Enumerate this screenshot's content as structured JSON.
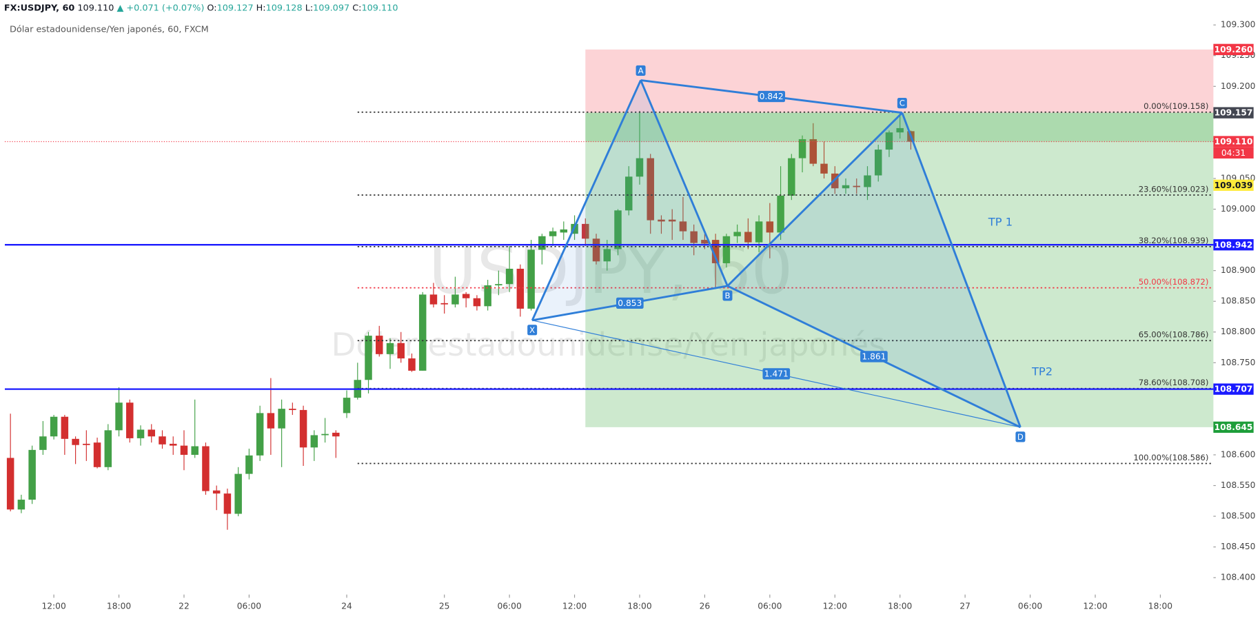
{
  "chart_data": {
    "type": "candlestick",
    "header": {
      "symbol": "FX:USDJPY, 60",
      "last": "109.110",
      "arrow": "▲",
      "change": "+0.071 (+0.07%)",
      "ohlc": [
        [
          "O:",
          "109.127"
        ],
        [
          "H:",
          "109.128"
        ],
        [
          "L:",
          "109.097"
        ],
        [
          "C:",
          "109.110"
        ]
      ]
    },
    "subtitle": "Dólar estadounidense/Yen japonés, 60, FXCM",
    "watermark": {
      "symbol": "USDJPY, 60",
      "description": "Dólar estadounidense/Yen japonés"
    },
    "xlim": [
      -4.963,
      106.89
    ],
    "ylim": [
      108.3725,
      109.3406
    ],
    "xticks": [
      {
        "value": 0,
        "label": "12:00"
      },
      {
        "value": 6,
        "label": "18:00"
      },
      {
        "value": 12,
        "label": "22"
      },
      {
        "value": 18,
        "label": "06:00"
      },
      {
        "value": 27,
        "label": "24"
      },
      {
        "value": 36,
        "label": "25"
      },
      {
        "value": 42,
        "label": "06:00"
      },
      {
        "value": 48,
        "label": "12:00"
      },
      {
        "value": 54,
        "label": "18:00"
      },
      {
        "value": 60,
        "label": "26"
      },
      {
        "value": 66,
        "label": "06:00"
      },
      {
        "value": 72,
        "label": "12:00"
      },
      {
        "value": 78,
        "label": "18:00"
      },
      {
        "value": 84,
        "label": "27"
      },
      {
        "value": 90,
        "label": "06:00"
      },
      {
        "value": 96,
        "label": "12:00"
      },
      {
        "value": 102,
        "label": "18:00"
      }
    ],
    "yticks": [
      {
        "value": 109.3,
        "label": "109.300"
      },
      {
        "value": 109.25,
        "label": "109.250"
      },
      {
        "value": 109.2,
        "label": "109.200"
      },
      {
        "value": 109.05,
        "label": "109.050"
      },
      {
        "value": 109.0,
        "label": "109.000"
      },
      {
        "value": 108.9,
        "label": "108.900"
      },
      {
        "value": 108.85,
        "label": "108.850"
      },
      {
        "value": 108.8,
        "label": "108.800"
      },
      {
        "value": 108.75,
        "label": "108.750"
      },
      {
        "value": 108.6,
        "label": "108.600"
      },
      {
        "value": 108.55,
        "label": "108.550"
      },
      {
        "value": 108.5,
        "label": "108.500"
      },
      {
        "value": 108.45,
        "label": "108.450"
      },
      {
        "value": 108.4,
        "label": "108.400"
      }
    ],
    "up_color": "#43a047",
    "down_color": "#d32f2f",
    "candles": {
      "x": [
        -4,
        -3,
        -2,
        -1,
        0,
        1,
        2,
        3,
        4,
        5,
        6,
        7,
        8,
        9,
        10,
        11,
        12,
        13,
        14,
        15,
        16,
        17,
        18,
        19,
        20,
        21,
        22,
        23,
        24,
        25,
        26,
        27,
        28,
        29,
        30,
        31,
        32,
        33,
        34,
        35,
        36,
        37,
        38,
        39,
        40,
        41,
        42,
        43,
        44,
        45,
        46,
        47,
        48,
        49,
        50,
        51,
        52,
        53,
        54,
        55,
        56,
        57,
        58,
        59,
        60,
        61,
        62,
        63,
        64,
        65,
        66,
        67,
        68,
        69,
        70,
        71,
        72,
        73,
        74,
        75,
        76,
        77,
        78,
        79
      ],
      "open": [
        108.595,
        108.511,
        108.527,
        108.608,
        108.63,
        108.662,
        108.626,
        108.618,
        108.62,
        108.58,
        108.64,
        108.685,
        108.627,
        108.641,
        108.63,
        108.618,
        108.615,
        108.6,
        108.614,
        108.542,
        108.537,
        108.504,
        108.569,
        108.599,
        108.668,
        108.643,
        108.675,
        108.673,
        108.612,
        108.632,
        108.636,
        108.668,
        108.693,
        108.722,
        108.794,
        108.764,
        108.782,
        108.757,
        108.737,
        108.861,
        108.847,
        108.845,
        108.862,
        108.855,
        108.842,
        108.876,
        108.878,
        108.903,
        108.838,
        108.934,
        108.956,
        108.962,
        108.96,
        108.976,
        108.952,
        108.915,
        108.935,
        108.998,
        109.053,
        109.083,
        108.983,
        108.983,
        108.98,
        108.964,
        108.95,
        108.95,
        108.912,
        108.956,
        108.963,
        108.946,
        108.98,
        108.962,
        109.022,
        109.083,
        109.114,
        109.074,
        109.058,
        109.034,
        109.038,
        109.036,
        109.055,
        109.097,
        109.125,
        109.127
      ],
      "high": [
        108.667,
        108.535,
        108.615,
        108.655,
        108.665,
        108.665,
        108.63,
        108.64,
        108.628,
        108.65,
        108.71,
        108.69,
        108.648,
        108.65,
        108.64,
        108.63,
        108.64,
        108.69,
        108.62,
        108.55,
        108.545,
        108.58,
        108.61,
        108.68,
        108.725,
        108.69,
        108.685,
        108.68,
        108.64,
        108.66,
        108.64,
        108.705,
        108.75,
        108.8,
        108.81,
        108.79,
        108.8,
        108.765,
        108.865,
        108.88,
        108.86,
        108.89,
        108.865,
        108.86,
        108.885,
        108.9,
        108.94,
        108.91,
        108.95,
        108.96,
        108.97,
        108.98,
        108.99,
        108.985,
        108.96,
        108.95,
        109.0,
        109.07,
        109.16,
        109.09,
        108.99,
        109.0,
        109.02,
        108.975,
        108.96,
        108.96,
        108.96,
        108.975,
        108.985,
        108.99,
        109.01,
        109.07,
        109.09,
        109.12,
        109.14,
        109.11,
        109.07,
        109.05,
        109.05,
        109.07,
        109.105,
        109.128,
        109.157,
        109.128
      ],
      "low": [
        108.508,
        108.505,
        108.52,
        108.6,
        108.625,
        108.6,
        108.585,
        108.59,
        108.578,
        108.575,
        108.63,
        108.62,
        108.615,
        108.62,
        108.61,
        108.6,
        108.575,
        108.595,
        108.535,
        108.51,
        108.478,
        108.5,
        108.56,
        108.59,
        108.6,
        108.58,
        108.665,
        108.582,
        108.59,
        108.62,
        108.595,
        108.66,
        108.69,
        108.7,
        108.76,
        108.74,
        108.75,
        108.735,
        108.737,
        108.84,
        108.83,
        108.84,
        108.84,
        108.835,
        108.835,
        108.86,
        108.865,
        108.825,
        108.835,
        108.91,
        108.94,
        108.95,
        108.95,
        108.94,
        108.91,
        108.9,
        108.925,
        108.99,
        109.04,
        108.96,
        108.96,
        108.95,
        108.95,
        108.925,
        108.935,
        108.87,
        108.905,
        108.945,
        108.935,
        108.93,
        108.92,
        108.95,
        109.015,
        109.06,
        109.07,
        109.05,
        109.025,
        109.025,
        109.025,
        109.015,
        109.045,
        109.085,
        109.115,
        109.097
      ],
      "close": [
        108.511,
        108.527,
        108.608,
        108.63,
        108.662,
        108.626,
        108.616,
        108.616,
        108.58,
        108.64,
        108.685,
        108.627,
        108.641,
        108.63,
        108.617,
        108.615,
        108.6,
        108.614,
        108.541,
        108.537,
        108.504,
        108.569,
        108.599,
        108.668,
        108.643,
        108.675,
        108.673,
        108.612,
        108.632,
        108.634,
        108.63,
        108.693,
        108.722,
        108.794,
        108.764,
        108.782,
        108.757,
        108.737,
        108.861,
        108.845,
        108.845,
        108.861,
        108.855,
        108.842,
        108.876,
        108.878,
        108.903,
        108.838,
        108.934,
        108.956,
        108.964,
        108.967,
        108.976,
        108.952,
        108.915,
        108.935,
        108.998,
        109.053,
        109.083,
        108.982,
        108.98,
        108.98,
        108.964,
        108.945,
        108.944,
        108.912,
        108.956,
        108.963,
        108.946,
        108.98,
        108.962,
        109.022,
        109.083,
        109.114,
        109.074,
        109.058,
        109.034,
        109.039,
        109.036,
        109.055,
        109.097,
        109.125,
        109.132,
        109.11
      ]
    },
    "position": {
      "start": 49,
      "entry": {
        "value": 109.157,
        "label": "109.157"
      },
      "stop": {
        "value": 109.26,
        "label": "109.260"
      },
      "target": {
        "value": 108.645,
        "label": "108.645"
      }
    },
    "last_price": {
      "value": 109.11,
      "label": "109.110",
      "countdown": "04:31",
      "color": "#f23645"
    },
    "hlines": [
      {
        "value": 108.942,
        "label": "108.942",
        "color": "#1a1aff"
      },
      {
        "value": 108.707,
        "label": "108.707",
        "color": "#1a1aff"
      }
    ],
    "levels": [
      {
        "value": 109.039,
        "label": "109.039",
        "color": "#ffeb3b"
      }
    ],
    "fib": {
      "start": 28,
      "color": "#333333",
      "levels": [
        {
          "value": 109.158,
          "label": "0.00%(109.158)"
        },
        {
          "value": 109.023,
          "label": "23.60%(109.023)"
        },
        {
          "value": 108.939,
          "label": "38.20%(108.939)"
        },
        {
          "value": 108.872,
          "label": "50.00%(108.872)",
          "color": "#f23645"
        },
        {
          "value": 108.786,
          "label": "65.00%(108.786)"
        },
        {
          "value": 108.708,
          "label": "78.60%(108.708)"
        },
        {
          "value": 108.586,
          "label": "100.00%(108.586)"
        }
      ]
    },
    "pattern": {
      "color": "#2f7ed8",
      "points": [
        {
          "label": "X",
          "x": 44.1,
          "value": 108.819
        },
        {
          "label": "A",
          "x": 54.1,
          "value": 109.21
        },
        {
          "label": "B",
          "x": 62.1,
          "value": 108.875
        },
        {
          "label": "C",
          "x": 78.2,
          "value": 109.157
        },
        {
          "label": "D",
          "x": 89.1,
          "value": 108.645
        }
      ],
      "ratios": {
        "AC": "0.842",
        "XB": "0.853",
        "BD": "1.861",
        "XD": "1.471"
      }
    },
    "annotations": [
      "TP 1",
      "TP2"
    ]
  }
}
